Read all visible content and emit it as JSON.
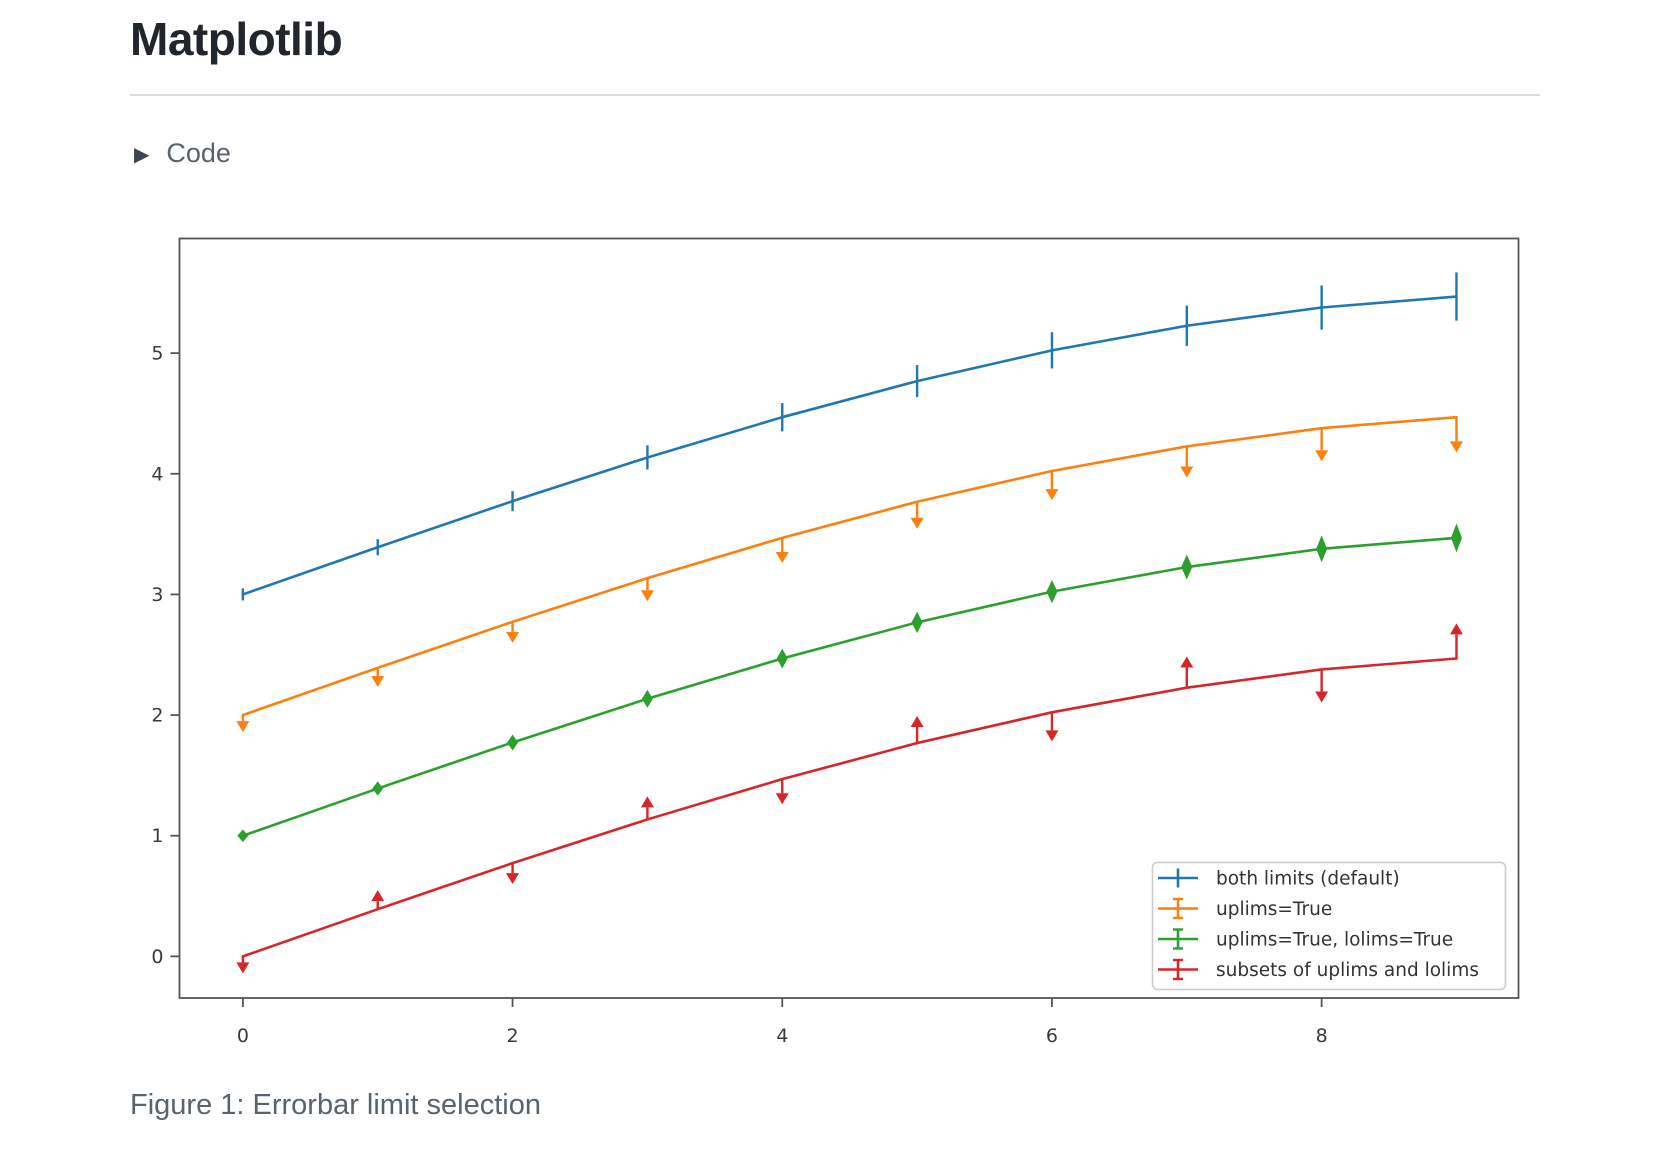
{
  "header": {
    "title": "Matplotlib"
  },
  "code_section": {
    "label": "Code",
    "collapsed": true,
    "triangle_icon": "▶"
  },
  "figure": {
    "caption": "Figure 1: Errorbar limit selection"
  },
  "chart_data": {
    "type": "line",
    "title": "",
    "xlabel": "",
    "ylabel": "",
    "grid": false,
    "legend_position": "lower right",
    "x": [
      0,
      1,
      2,
      3,
      4,
      5,
      6,
      7,
      8,
      9
    ],
    "xticks": [
      0,
      2,
      4,
      6,
      8
    ],
    "yticks": [
      0,
      1,
      2,
      3,
      4,
      5
    ],
    "xlim": [
      -0.47,
      9.46
    ],
    "ylim": [
      -0.345,
      5.95
    ],
    "yerr": [
      0.05,
      0.067,
      0.083,
      0.1,
      0.117,
      0.133,
      0.15,
      0.167,
      0.183,
      0.2
    ],
    "series": [
      {
        "name": "both limits (default)",
        "color": "#1f77b4",
        "limit_style": "bars",
        "values": [
          3.0,
          3.391,
          3.773,
          4.135,
          4.469,
          4.768,
          5.023,
          5.227,
          5.378,
          5.469
        ]
      },
      {
        "name": "uplims=True",
        "color": "#ff7f0e",
        "limit_style": "uplims",
        "values": [
          2.0,
          2.391,
          2.773,
          3.135,
          3.469,
          3.768,
          4.023,
          4.227,
          4.378,
          4.469
        ]
      },
      {
        "name": "uplims=True, lolims=True",
        "color": "#2ca02c",
        "limit_style": "uplims+lolims",
        "values": [
          1.0,
          1.391,
          1.773,
          2.135,
          2.469,
          2.768,
          3.023,
          3.227,
          3.378,
          3.469
        ]
      },
      {
        "name": "subsets of uplims and lolims",
        "color": "#d62728",
        "limit_style": "alternating",
        "uplims": [
          true,
          false,
          true,
          false,
          true,
          false,
          true,
          false,
          true,
          false
        ],
        "lolims": [
          false,
          true,
          false,
          true,
          false,
          true,
          false,
          true,
          false,
          true
        ],
        "values": [
          0.0,
          0.391,
          0.773,
          1.135,
          1.469,
          1.768,
          2.023,
          2.227,
          2.378,
          2.469
        ]
      }
    ],
    "axis_color": "#555555",
    "tick_label_color": "#3b3b3b",
    "legend_border_color": "#cccccc"
  }
}
